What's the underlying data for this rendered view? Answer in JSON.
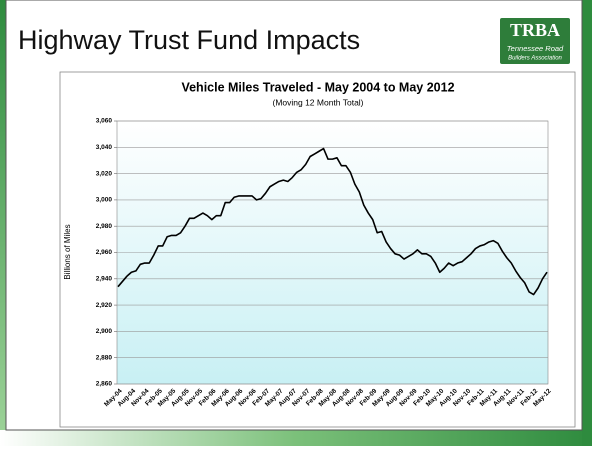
{
  "slide": {
    "title": "Highway Trust Fund Impacts",
    "logo": {
      "mark": "TRBA",
      "line1": "Tennessee Road",
      "line2": "Builders Association"
    }
  },
  "chart_data": {
    "type": "line",
    "title": "Vehicle Miles Traveled - May 2004 to May 2012",
    "subtitle": "(Moving 12 Month Total)",
    "y_label": "Billions of Miles",
    "color": "#000000",
    "grid": true,
    "ylim": [
      2860,
      3060
    ],
    "yticks": [
      {
        "value": 2860,
        "label": "2,860"
      },
      {
        "value": 2880,
        "label": "2,880"
      },
      {
        "value": 2900,
        "label": "2,900"
      },
      {
        "value": 2920,
        "label": "2,920"
      },
      {
        "value": 2940,
        "label": "2,940"
      },
      {
        "value": 2960,
        "label": "2,960"
      },
      {
        "value": 2980,
        "label": "2,980"
      },
      {
        "value": 3000,
        "label": "3,000"
      },
      {
        "value": 3020,
        "label": "3,020"
      },
      {
        "value": 3040,
        "label": "3,040"
      },
      {
        "value": 3060,
        "label": "3,060"
      }
    ],
    "categories": [
      "May-04",
      null,
      null,
      "Aug-04",
      null,
      null,
      "Nov-04",
      null,
      null,
      "Feb-05",
      null,
      null,
      "May-05",
      null,
      null,
      "Aug-05",
      null,
      null,
      "Nov-05",
      null,
      null,
      "Feb-06",
      null,
      null,
      "May-06",
      null,
      null,
      "Aug-06",
      null,
      null,
      "Nov-06",
      null,
      null,
      "Feb-07",
      null,
      null,
      "May-07",
      null,
      null,
      "Aug-07",
      null,
      null,
      "Nov-07",
      null,
      null,
      "Feb-08",
      null,
      null,
      "May-08",
      null,
      null,
      "Aug-08",
      null,
      null,
      "Nov-08",
      null,
      null,
      "Feb-09",
      null,
      null,
      "May-09",
      null,
      null,
      "Aug-09",
      null,
      null,
      "Nov-09",
      null,
      null,
      "Feb-10",
      null,
      null,
      "May-10",
      null,
      null,
      "Aug-10",
      null,
      null,
      "Nov-10",
      null,
      null,
      "Feb-11",
      null,
      null,
      "May-11",
      null,
      null,
      "Aug-11",
      null,
      null,
      "Nov-11",
      null,
      null,
      "Feb-12",
      null,
      null,
      "May-12"
    ],
    "values": [
      2934,
      2938,
      2942,
      2945,
      2946,
      2951,
      2952,
      2952,
      2958,
      2965,
      2965,
      2972,
      2973,
      2973,
      2975,
      2980,
      2986,
      2986,
      2988,
      2990,
      2988,
      2985,
      2988,
      2988,
      2998,
      2998,
      3002,
      3003,
      3003,
      3003,
      3003,
      3000,
      3001,
      3005,
      3010,
      3012,
      3014,
      3015,
      3014,
      3017,
      3021,
      3023,
      3027,
      3033,
      3035,
      3037,
      3039,
      3031,
      3031,
      3032,
      3026,
      3026,
      3021,
      3012,
      3006,
      2996,
      2990,
      2985,
      2975,
      2976,
      2968,
      2963,
      2959,
      2958,
      2955,
      2957,
      2959,
      2962,
      2959,
      2959,
      2957,
      2952,
      2945,
      2948,
      2952,
      2950,
      2952,
      2953,
      2956,
      2959,
      2963,
      2965,
      2966,
      2968,
      2969,
      2967,
      2961,
      2956,
      2952,
      2946,
      2941,
      2937,
      2930,
      2928,
      2933,
      2940,
      2945
    ]
  }
}
